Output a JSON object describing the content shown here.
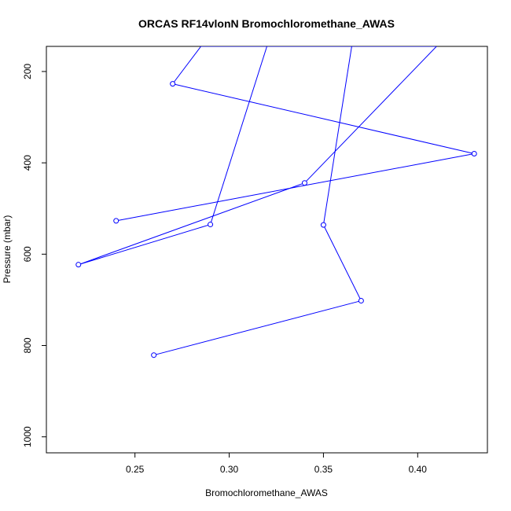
{
  "chart_data": {
    "type": "line",
    "title": "ORCAS RF14vlonN Bromochloromethane_AWAS",
    "xlabel": "Bromochloromethane_AWAS",
    "ylabel": "Pressure (mbar)",
    "xlim": [
      0.203,
      0.437
    ],
    "ylim": [
      1035,
      145
    ],
    "y_reversed": true,
    "x_ticks": [
      0.25,
      0.3,
      0.35,
      0.4
    ],
    "x_tick_labels": [
      "0.25",
      "0.30",
      "0.35",
      "0.40"
    ],
    "y_ticks": [
      200,
      400,
      600,
      800,
      1000
    ],
    "y_tick_labels": [
      "200",
      "400",
      "600",
      "800",
      "1000"
    ],
    "grid": false,
    "legend": "none",
    "color": "#0000ff",
    "marker": "open-circle",
    "series": [
      {
        "points": [
          {
            "x": 0.26,
            "y": 821
          },
          {
            "x": 0.37,
            "y": 702
          },
          {
            "x": 0.35,
            "y": 536
          },
          {
            "x": 0.365,
            "y": 145
          },
          {
            "x": 0.32,
            "y": 145
          },
          {
            "x": 0.29,
            "y": 535
          },
          {
            "x": 0.22,
            "y": 623
          },
          {
            "x": 0.34,
            "y": 444
          },
          {
            "x": 0.41,
            "y": 145
          },
          {
            "x": 0.285,
            "y": 145
          },
          {
            "x": 0.27,
            "y": 227
          },
          {
            "x": 0.43,
            "y": 380
          },
          {
            "x": 0.24,
            "y": 527
          }
        ],
        "markers": [
          {
            "x": 0.26,
            "y": 821
          },
          {
            "x": 0.37,
            "y": 702
          },
          {
            "x": 0.35,
            "y": 536
          },
          {
            "x": 0.29,
            "y": 535
          },
          {
            "x": 0.22,
            "y": 623
          },
          {
            "x": 0.34,
            "y": 444
          },
          {
            "x": 0.27,
            "y": 227
          },
          {
            "x": 0.43,
            "y": 380
          },
          {
            "x": 0.24,
            "y": 527
          }
        ]
      }
    ]
  }
}
